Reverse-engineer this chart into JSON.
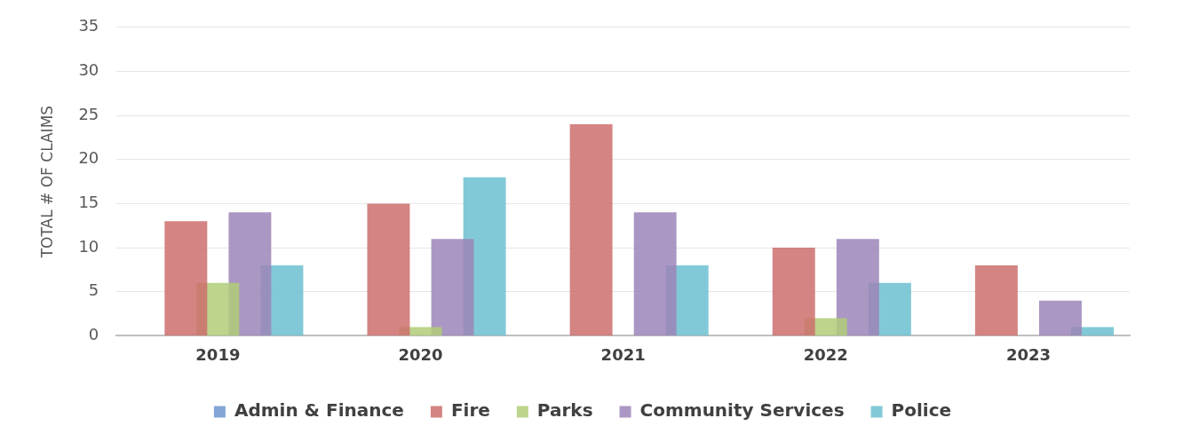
{
  "chart_data": {
    "type": "bar",
    "ylabel": "TOTAL # OF CLAIMS",
    "categories": [
      "2019",
      "2020",
      "2021",
      "2022",
      "2023"
    ],
    "series": [
      {
        "name": "Admin & Finance",
        "color": "#6f97d0",
        "values": [
          0,
          0,
          0,
          0,
          0
        ]
      },
      {
        "name": "Fire",
        "color": "#cd6f6c",
        "values": [
          13,
          15,
          24,
          10,
          8
        ]
      },
      {
        "name": "Parks",
        "color": "#b0cc78",
        "values": [
          6,
          1,
          0,
          2,
          0
        ]
      },
      {
        "name": "Community Services",
        "color": "#9c85b8",
        "values": [
          14,
          11,
          14,
          11,
          4
        ]
      },
      {
        "name": "Police",
        "color": "#6cbfd0",
        "values": [
          8,
          18,
          8,
          6,
          1
        ]
      }
    ],
    "ylim": [
      0,
      35
    ],
    "yticks": [
      0,
      5,
      10,
      15,
      20,
      25,
      30,
      35
    ],
    "grid": "y",
    "legend": "bottom"
  }
}
